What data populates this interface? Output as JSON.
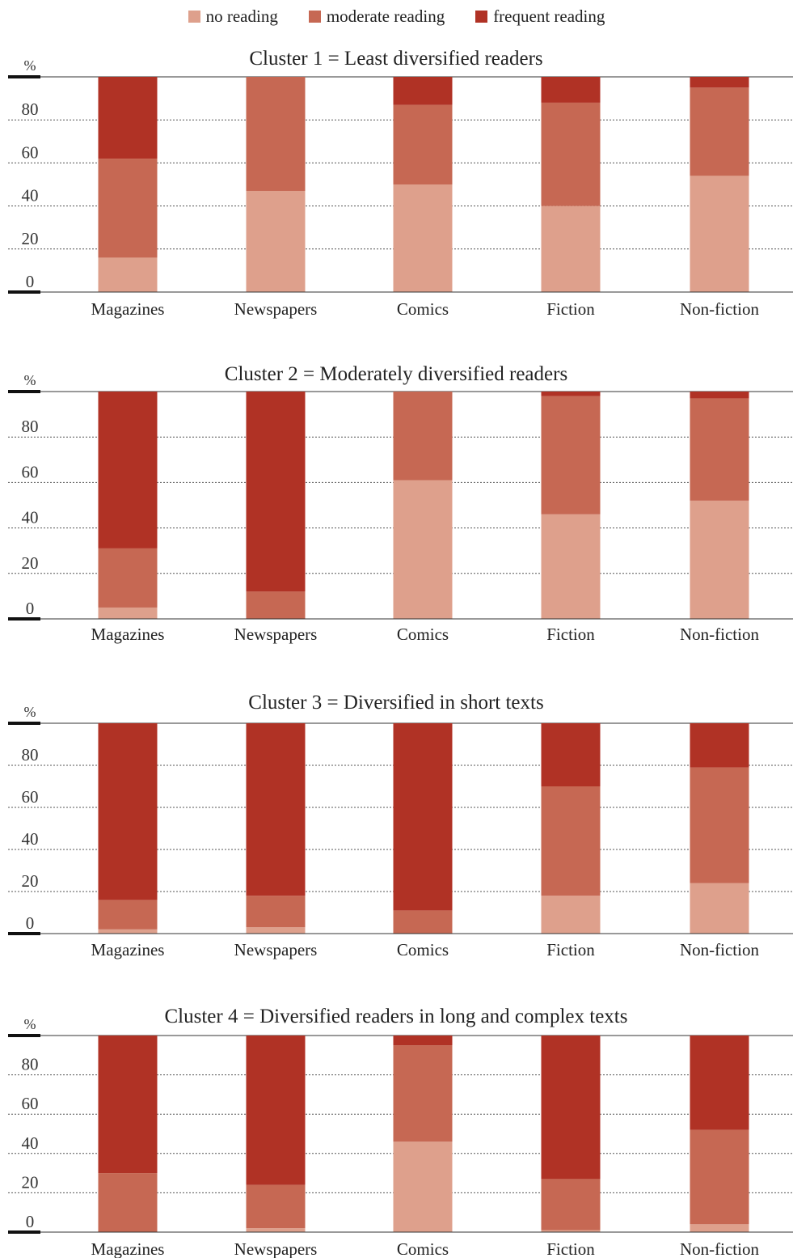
{
  "legend": [
    {
      "label": "no reading",
      "color": "#dea08c"
    },
    {
      "label": "moderate reading",
      "color": "#c66853"
    },
    {
      "label": "frequent reading",
      "color": "#b03225"
    }
  ],
  "chart_data": [
    {
      "type": "bar",
      "stacked": true,
      "title": "Cluster 1 = Least diversified readers",
      "ylabel": "%",
      "ylim": [
        0,
        100
      ],
      "yticks": [
        0,
        20,
        40,
        60,
        80
      ],
      "categories": [
        "Magazines",
        "Newspapers",
        "Comics",
        "Fiction",
        "Non-fiction"
      ],
      "series": [
        {
          "name": "no reading",
          "values": [
            16,
            47,
            50,
            40,
            54
          ]
        },
        {
          "name": "moderate reading",
          "values": [
            46,
            53,
            37,
            48,
            41
          ]
        },
        {
          "name": "frequent reading",
          "values": [
            38,
            0,
            13,
            12,
            5
          ]
        }
      ]
    },
    {
      "type": "bar",
      "stacked": true,
      "title": "Cluster 2 = Moderately diversified readers",
      "ylabel": "%",
      "ylim": [
        0,
        100
      ],
      "yticks": [
        0,
        20,
        40,
        60,
        80
      ],
      "categories": [
        "Magazines",
        "Newspapers",
        "Comics",
        "Fiction",
        "Non-fiction"
      ],
      "series": [
        {
          "name": "no reading",
          "values": [
            5,
            0,
            61,
            46,
            52
          ]
        },
        {
          "name": "moderate reading",
          "values": [
            26,
            12,
            39,
            52,
            45
          ]
        },
        {
          "name": "frequent reading",
          "values": [
            69,
            88,
            0,
            2,
            3
          ]
        }
      ]
    },
    {
      "type": "bar",
      "stacked": true,
      "title": "Cluster 3 = Diversified in short texts",
      "ylabel": "%",
      "ylim": [
        0,
        100
      ],
      "yticks": [
        0,
        20,
        40,
        60,
        80
      ],
      "categories": [
        "Magazines",
        "Newspapers",
        "Comics",
        "Fiction",
        "Non-fiction"
      ],
      "series": [
        {
          "name": "no reading",
          "values": [
            2,
            3,
            0,
            18,
            24
          ]
        },
        {
          "name": "moderate reading",
          "values": [
            14,
            15,
            11,
            52,
            55
          ]
        },
        {
          "name": "frequent reading",
          "values": [
            84,
            82,
            89,
            30,
            21
          ]
        }
      ]
    },
    {
      "type": "bar",
      "stacked": true,
      "title": "Cluster 4 = Diversified readers in long and complex texts",
      "ylabel": "%",
      "ylim": [
        0,
        100
      ],
      "yticks": [
        0,
        20,
        40,
        60,
        80
      ],
      "categories": [
        "Magazines",
        "Newspapers",
        "Comics",
        "Fiction",
        "Non-fiction"
      ],
      "series": [
        {
          "name": "no reading",
          "values": [
            0,
            2,
            46,
            1,
            4
          ]
        },
        {
          "name": "moderate reading",
          "values": [
            30,
            22,
            49,
            26,
            48
          ]
        },
        {
          "name": "frequent reading",
          "values": [
            70,
            76,
            5,
            73,
            48
          ]
        }
      ]
    }
  ]
}
